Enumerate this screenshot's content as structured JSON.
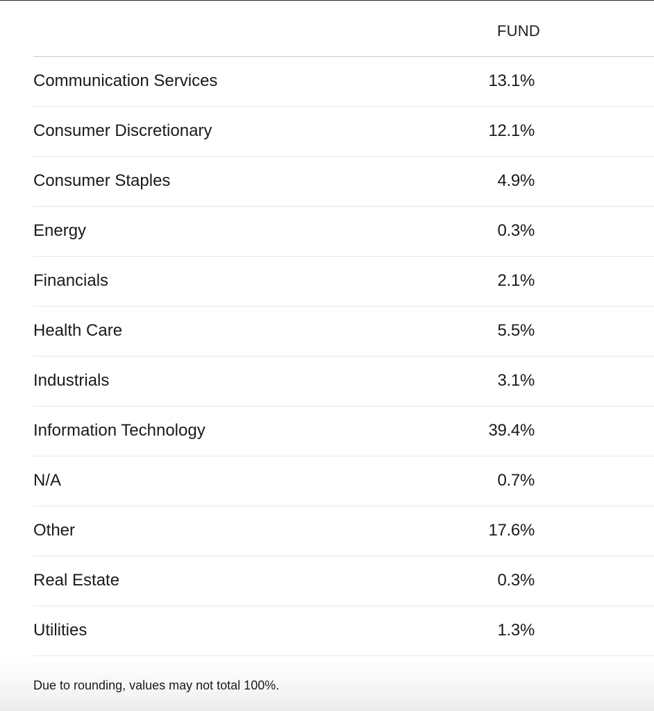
{
  "table": {
    "column_header": "FUND",
    "rows": [
      {
        "label": "Communication Services",
        "value": "13.1%"
      },
      {
        "label": "Consumer Discretionary",
        "value": "12.1%"
      },
      {
        "label": "Consumer Staples",
        "value": "4.9%"
      },
      {
        "label": "Energy",
        "value": "0.3%"
      },
      {
        "label": "Financials",
        "value": "2.1%"
      },
      {
        "label": "Health Care",
        "value": "5.5%"
      },
      {
        "label": "Industrials",
        "value": "3.1%"
      },
      {
        "label": "Information Technology",
        "value": "39.4%"
      },
      {
        "label": "N/A",
        "value": "0.7%"
      },
      {
        "label": "Other",
        "value": "17.6%"
      },
      {
        "label": "Real Estate",
        "value": "0.3%"
      },
      {
        "label": "Utilities",
        "value": "1.3%"
      }
    ]
  },
  "footer": {
    "note": "Due to rounding, values may not total 100%."
  }
}
